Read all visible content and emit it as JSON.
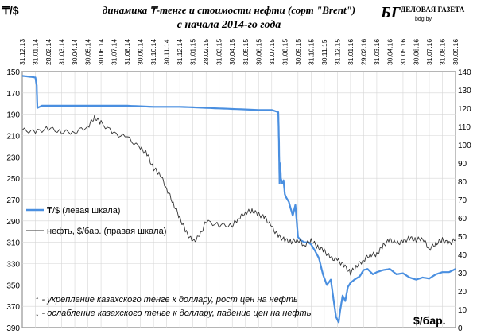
{
  "chart_data": {
    "type": "line",
    "title": "динамика ₸-тенге и стоимости нефти (сорт \"Brent\")",
    "subtitle": "с начала 2014-го года",
    "left_axis_label": "₸/$",
    "right_axis_label": "$/бар.",
    "left_ylim": [
      150,
      390
    ],
    "left_ticks": [
      "150",
      "170",
      "190",
      "210",
      "230",
      "250",
      "270",
      "290",
      "310",
      "330",
      "350",
      "370",
      "390"
    ],
    "left_inverted": true,
    "right_ylim": [
      0,
      140
    ],
    "right_ticks": [
      "0",
      "10",
      "20",
      "30",
      "40",
      "50",
      "60",
      "70",
      "80",
      "90",
      "100",
      "110",
      "120",
      "130",
      "140"
    ],
    "x_ticks": [
      "31.12.13",
      "31.01.14",
      "28.02.14",
      "31.03.14",
      "30.04.14",
      "30.05.14",
      "30.06.14",
      "31.07.14",
      "31.08.14",
      "30.09.14",
      "31.10.14",
      "30.11.14",
      "31.12.14",
      "31.01.15",
      "28.02.15",
      "31.03.15",
      "30.04.15",
      "31.05.15",
      "30.06.15",
      "31.07.15",
      "31.08.15",
      "30.09.15",
      "31.10.15",
      "30.11.15",
      "31.12.15",
      "31.01.16",
      "29.02.16",
      "31.03.16",
      "30.04.16",
      "31.05.16",
      "30.06.16",
      "31.07.16",
      "31.08.16",
      "30.09.16"
    ],
    "series": [
      {
        "name": "₸/$ (левая шкала)",
        "axis": "left",
        "color": "#4a8fe0",
        "x": [
          0,
          0.7,
          1.0,
          1.1,
          1.15,
          1.5,
          2.0,
          4.0,
          6.0,
          8.0,
          10.0,
          12.0,
          14.0,
          16.0,
          18.0,
          19.0,
          19.5,
          19.55,
          19.6,
          19.65,
          19.7,
          19.8,
          19.9,
          20.0,
          20.1,
          20.3,
          20.6,
          20.8,
          21.0,
          21.2,
          21.5,
          21.8,
          22.0,
          22.3,
          22.6,
          22.9,
          23.2,
          23.5,
          23.7,
          23.9,
          24.1,
          24.2,
          24.4,
          24.6,
          24.8,
          25.0,
          25.3,
          25.7,
          26.0,
          26.3,
          26.7,
          27.0,
          27.5,
          28.0,
          28.5,
          29.0,
          29.5,
          30.0,
          30.5,
          31.0,
          31.5,
          32.0,
          32.5,
          33.0
        ],
        "values": [
          154,
          155,
          155.5,
          163,
          184,
          182,
          182,
          182,
          182,
          182,
          183,
          183,
          184,
          185,
          186,
          186,
          188,
          215,
          255,
          236,
          250,
          255,
          252,
          265,
          268,
          272,
          285,
          275,
          305,
          308,
          310,
          310,
          312,
          318,
          325,
          340,
          350,
          345,
          363,
          380,
          385,
          375,
          360,
          365,
          352,
          348,
          345,
          342,
          336,
          335,
          340,
          338,
          336,
          335,
          340,
          339,
          343,
          345,
          343,
          344,
          340,
          338,
          338,
          335
        ]
      },
      {
        "name": "нефть, $/бар. (правая шкала)",
        "axis": "right",
        "color": "#333333",
        "x": [
          0,
          1.0,
          2.0,
          3.0,
          4.0,
          5.0,
          5.5,
          6.0,
          7.0,
          8.0,
          9.0,
          9.5,
          10.0,
          10.5,
          11.0,
          11.5,
          12.0,
          12.5,
          13.0,
          13.5,
          14.0,
          15.0,
          16.0,
          16.5,
          17.0,
          17.5,
          18.0,
          18.5,
          19.0,
          19.5,
          20.0,
          20.5,
          21.0,
          21.5,
          22.0,
          22.5,
          23.0,
          23.5,
          24.0,
          24.5,
          25.0,
          25.5,
          26.0,
          26.5,
          27.0,
          27.5,
          28.0,
          28.5,
          29.0,
          29.5,
          30.0,
          30.5,
          31.0,
          31.5,
          32.0,
          32.5,
          33.0
        ],
        "values": [
          108,
          107,
          109,
          107,
          107,
          110,
          115,
          112,
          106,
          104,
          98,
          95,
          87,
          84,
          76,
          68,
          60,
          52,
          47,
          50,
          58,
          56,
          56,
          60,
          63,
          64,
          62,
          60,
          55,
          50,
          48,
          47,
          48,
          45,
          48,
          44,
          42,
          38,
          37,
          34,
          30,
          34,
          37,
          40,
          40,
          45,
          48,
          46,
          47,
          49,
          48,
          49,
          43,
          46,
          48,
          46,
          48
        ]
      }
    ],
    "legend_placement": "left-middle",
    "grid": true
  },
  "annotations": {
    "up_text": "↑ - укрепление казахского тенге к доллару, рост цен на нефть",
    "down_text": "↓ - ослабление казахского тенге к доллару, падение цен на нефть"
  },
  "logo": {
    "mark": "БГ",
    "name": "ДЕЛОВАЯ ГАЗЕТА",
    "site": "bdg.by"
  }
}
